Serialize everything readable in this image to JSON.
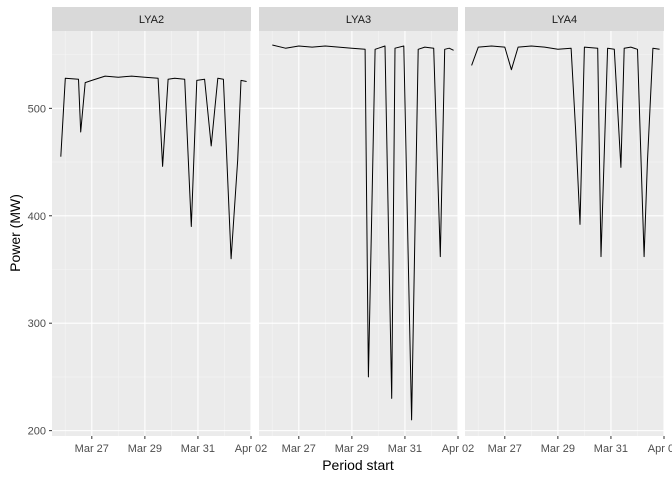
{
  "chart_data": {
    "type": "line",
    "facet_layout": "1 row x 3 columns, shared axes",
    "xlabel": "Period start",
    "ylabel": "Power (MW)",
    "x_ticks": [
      "Mar 27",
      "Mar 29",
      "Mar 31",
      "Apr 02"
    ],
    "y_ticks": [
      200,
      300,
      400,
      500
    ],
    "xlim": [
      "2024-03-25T12:00",
      "2024-04-02T00:00"
    ],
    "ylim": [
      195,
      572
    ],
    "grid": true,
    "legend": "none",
    "colors": {
      "panel_bg": "#ebebeb",
      "grid_major": "#ffffff",
      "grid_minor": "#f5f5f5",
      "strip_bg": "#d9d9d9",
      "line": "#000000"
    },
    "series": [
      {
        "name": "LYA2",
        "x": [
          "2024-03-25T20:00",
          "2024-03-26T00:00",
          "2024-03-26T12:00",
          "2024-03-26T14:00",
          "2024-03-26T18:00",
          "2024-03-27T00:00",
          "2024-03-27T12:00",
          "2024-03-28T00:00",
          "2024-03-28T12:00",
          "2024-03-29T00:00",
          "2024-03-29T12:00",
          "2024-03-29T16:00",
          "2024-03-29T21:00",
          "2024-03-30T03:00",
          "2024-03-30T12:00",
          "2024-03-30T18:00",
          "2024-03-30T23:00",
          "2024-03-31T06:00",
          "2024-03-31T12:00",
          "2024-03-31T18:00",
          "2024-03-31T23:00",
          "2024-04-01T06:00",
          "2024-04-01T12:00",
          "2024-04-01T15:00",
          "2024-04-01T20:00"
        ],
        "y": [
          455,
          528,
          527,
          478,
          524,
          526,
          530,
          529,
          530,
          529,
          528,
          446,
          527,
          528,
          527,
          390,
          526,
          527,
          465,
          528,
          527,
          360,
          452,
          526,
          525
        ]
      },
      {
        "name": "LYA3",
        "x": [
          "2024-03-26T00:00",
          "2024-03-26T12:00",
          "2024-03-27T00:00",
          "2024-03-27T12:00",
          "2024-03-28T00:00",
          "2024-03-28T12:00",
          "2024-03-29T00:00",
          "2024-03-29T12:00",
          "2024-03-29T15:00",
          "2024-03-29T21:00",
          "2024-03-30T06:00",
          "2024-03-30T12:00",
          "2024-03-30T15:00",
          "2024-03-30T23:00",
          "2024-03-31T06:00",
          "2024-03-31T12:00",
          "2024-03-31T18:00",
          "2024-04-01T02:00",
          "2024-04-01T08:00",
          "2024-04-01T12:00",
          "2024-04-01T16:00",
          "2024-04-01T20:00"
        ],
        "y": [
          559,
          556,
          558,
          557,
          558,
          557,
          556,
          555,
          250,
          555,
          558,
          230,
          556,
          558,
          210,
          555,
          557,
          556,
          362,
          555,
          556,
          554
        ]
      },
      {
        "name": "LYA4",
        "x": [
          "2024-03-25T18:00",
          "2024-03-26T00:00",
          "2024-03-26T12:00",
          "2024-03-27T00:00",
          "2024-03-27T06:00",
          "2024-03-27T12:00",
          "2024-03-28T00:00",
          "2024-03-28T12:00",
          "2024-03-29T00:00",
          "2024-03-29T12:00",
          "2024-03-29T16:00",
          "2024-03-29T20:00",
          "2024-03-30T00:00",
          "2024-03-30T12:00",
          "2024-03-30T15:00",
          "2024-03-30T21:00",
          "2024-03-31T03:00",
          "2024-03-31T09:00",
          "2024-03-31T12:00",
          "2024-03-31T18:00",
          "2024-04-01T00:00",
          "2024-04-01T06:00",
          "2024-04-01T09:00",
          "2024-04-01T14:00",
          "2024-04-01T20:00"
        ],
        "y": [
          540,
          557,
          558,
          557,
          536,
          557,
          558,
          557,
          555,
          556,
          480,
          392,
          557,
          556,
          362,
          556,
          555,
          445,
          556,
          557,
          555,
          362,
          450,
          556,
          555
        ]
      }
    ]
  }
}
